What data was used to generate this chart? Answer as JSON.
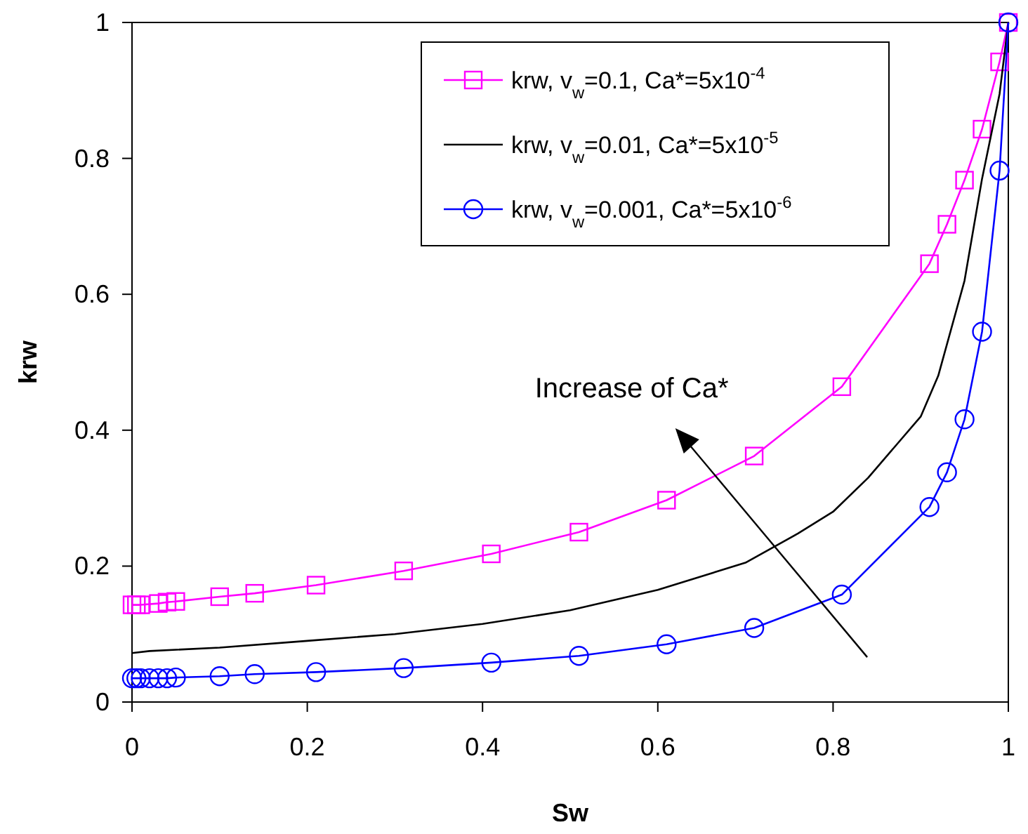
{
  "chart_data": {
    "type": "line",
    "xlabel": "Sw",
    "ylabel": "krw",
    "xlim": [
      0,
      1
    ],
    "ylim": [
      0,
      1
    ],
    "xticks": [
      0,
      0.2,
      0.4,
      0.6,
      0.8,
      1
    ],
    "yticks": [
      0,
      0.2,
      0.4,
      0.6,
      0.8,
      1
    ],
    "grid": false,
    "legend": "top right",
    "annotations": [
      "Increase of Ca*"
    ],
    "series": [
      {
        "name": "krw, v$_{w}$=0.1, Ca*=5x10$^{-4}$",
        "color": "#ff00ff",
        "marker": "square",
        "x": [
          0,
          0.005,
          0.01,
          0.03,
          0.04,
          0.05,
          0.1,
          0.14,
          0.21,
          0.31,
          0.41,
          0.51,
          0.61,
          0.71,
          0.81,
          0.91,
          0.93,
          0.95,
          0.97,
          0.99,
          1
        ],
        "values": [
          0.143,
          0.143,
          0.143,
          0.145,
          0.147,
          0.148,
          0.155,
          0.16,
          0.172,
          0.193,
          0.218,
          0.25,
          0.297,
          0.362,
          0.464,
          0.645,
          0.703,
          0.768,
          0.843,
          0.942,
          1
        ]
      },
      {
        "name": "krw, v$_{w}$=0.01, Ca*=5x10$^{-5}$",
        "color": "#000000",
        "marker": "none",
        "x": [
          0,
          0.02,
          0.1,
          0.2,
          0.3,
          0.4,
          0.5,
          0.6,
          0.7,
          0.76,
          0.8,
          0.84,
          0.9,
          0.92,
          0.95,
          0.97,
          0.99,
          1
        ],
        "values": [
          0.072,
          0.075,
          0.08,
          0.09,
          0.1,
          0.115,
          0.135,
          0.165,
          0.205,
          0.248,
          0.28,
          0.33,
          0.42,
          0.48,
          0.62,
          0.77,
          0.895,
          1
        ]
      },
      {
        "name": "krw, v$_{w}$=0.001, Ca*=5x10$^{-6}$",
        "color": "#0000ff",
        "marker": "circle",
        "x": [
          0,
          0.005,
          0.01,
          0.02,
          0.03,
          0.04,
          0.05,
          0.1,
          0.14,
          0.21,
          0.31,
          0.41,
          0.51,
          0.61,
          0.71,
          0.81,
          0.91,
          0.93,
          0.95,
          0.97,
          0.99,
          1
        ],
        "values": [
          0.035,
          0.035,
          0.035,
          0.035,
          0.035,
          0.035,
          0.036,
          0.038,
          0.041,
          0.044,
          0.05,
          0.058,
          0.068,
          0.085,
          0.109,
          0.158,
          0.287,
          0.338,
          0.416,
          0.545,
          0.782,
          1
        ]
      }
    ]
  }
}
